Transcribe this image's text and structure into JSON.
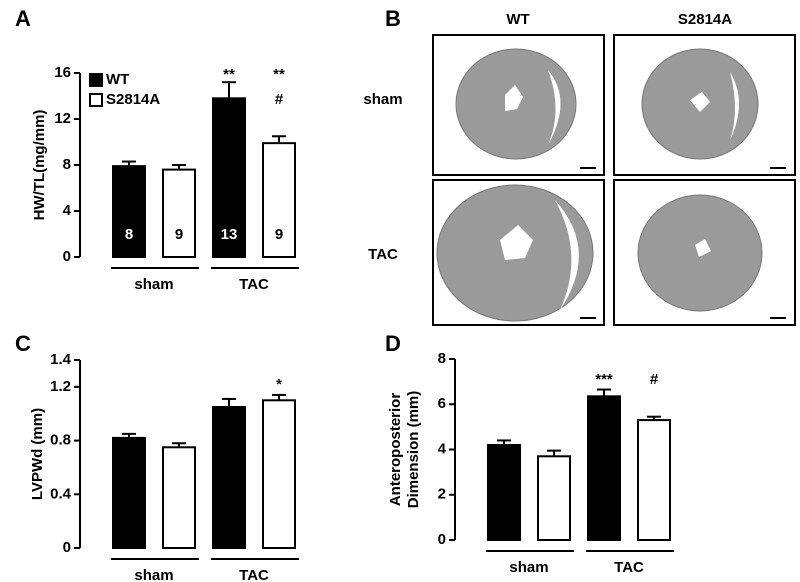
{
  "chart_data": [
    {
      "type": "bar",
      "panel": "A",
      "ylabel": [
        "HW/TL(mg/mm)"
      ],
      "categories": [
        "sham",
        "TAC"
      ],
      "ylim": [
        0,
        16
      ],
      "yticks": [
        0,
        4,
        8,
        12,
        16
      ],
      "legend": true,
      "series": [
        {
          "name": "WT",
          "color": "#000000",
          "values": [
            7.9,
            13.8
          ],
          "errors": [
            0.4,
            1.4
          ],
          "counts": [
            8,
            13
          ],
          "annotations": [
            null,
            [
              "**"
            ]
          ]
        },
        {
          "name": "S2814A",
          "color": "#ffffff",
          "values": [
            7.6,
            9.9
          ],
          "errors": [
            0.4,
            0.6
          ],
          "counts": [
            9,
            9
          ],
          "annotations": [
            null,
            [
              "**",
              "#"
            ]
          ]
        }
      ]
    },
    {
      "type": "bar",
      "panel": "C",
      "ylabel": [
        "LVPWd (mm)"
      ],
      "categories": [
        "sham",
        "TAC"
      ],
      "ylim": [
        0,
        1.4
      ],
      "yticks": [
        0,
        0.4,
        0.8,
        1.2,
        1.4
      ],
      "legend": false,
      "series": [
        {
          "name": "WT",
          "color": "#000000",
          "values": [
            0.82,
            1.05
          ],
          "errors": [
            0.03,
            0.06
          ],
          "annotations": [
            null,
            null
          ]
        },
        {
          "name": "S2814A",
          "color": "#ffffff",
          "values": [
            0.75,
            1.1
          ],
          "errors": [
            0.03,
            0.04
          ],
          "annotations": [
            null,
            [
              "*"
            ]
          ]
        }
      ]
    },
    {
      "type": "bar",
      "panel": "D",
      "ylabel": [
        "Anteroposterior",
        "Dimension (mm)"
      ],
      "categories": [
        "sham",
        "TAC"
      ],
      "ylim": [
        0,
        8
      ],
      "yticks": [
        0,
        2,
        4,
        6,
        8
      ],
      "legend": false,
      "series": [
        {
          "name": "WT",
          "color": "#000000",
          "values": [
            4.2,
            6.35
          ],
          "errors": [
            0.2,
            0.3
          ],
          "annotations": [
            null,
            [
              "***"
            ]
          ]
        },
        {
          "name": "S2814A",
          "color": "#ffffff",
          "values": [
            3.7,
            5.3
          ],
          "errors": [
            0.25,
            0.15
          ],
          "annotations": [
            null,
            [
              "#"
            ]
          ]
        }
      ]
    }
  ],
  "panel_b": {
    "panel": "B",
    "columns": [
      "WT",
      "S2814A"
    ],
    "rows": [
      "sham",
      "TAC"
    ]
  }
}
